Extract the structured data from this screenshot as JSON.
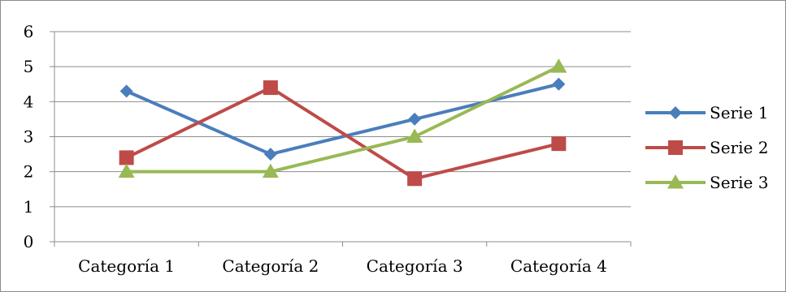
{
  "chart_data": {
    "type": "line",
    "title": "",
    "xlabel": "",
    "ylabel": "",
    "categories": [
      "Categoría 1",
      "Categoría 2",
      "Categoría 3",
      "Categoría 4"
    ],
    "ylim": [
      0,
      6
    ],
    "yticks": [
      0,
      1,
      2,
      3,
      4,
      5,
      6
    ],
    "grid": true,
    "legend_position": "right",
    "series": [
      {
        "name": "Serie 1",
        "values": [
          4.3,
          2.5,
          3.5,
          4.5
        ],
        "color": "#4a7ebb",
        "marker": "diamond"
      },
      {
        "name": "Serie 2",
        "values": [
          2.4,
          4.4,
          1.8,
          2.8
        ],
        "color": "#be4b48",
        "marker": "square"
      },
      {
        "name": "Serie 3",
        "values": [
          2.0,
          2.0,
          3.0,
          5.0
        ],
        "color": "#98b954",
        "marker": "triangle"
      }
    ]
  }
}
